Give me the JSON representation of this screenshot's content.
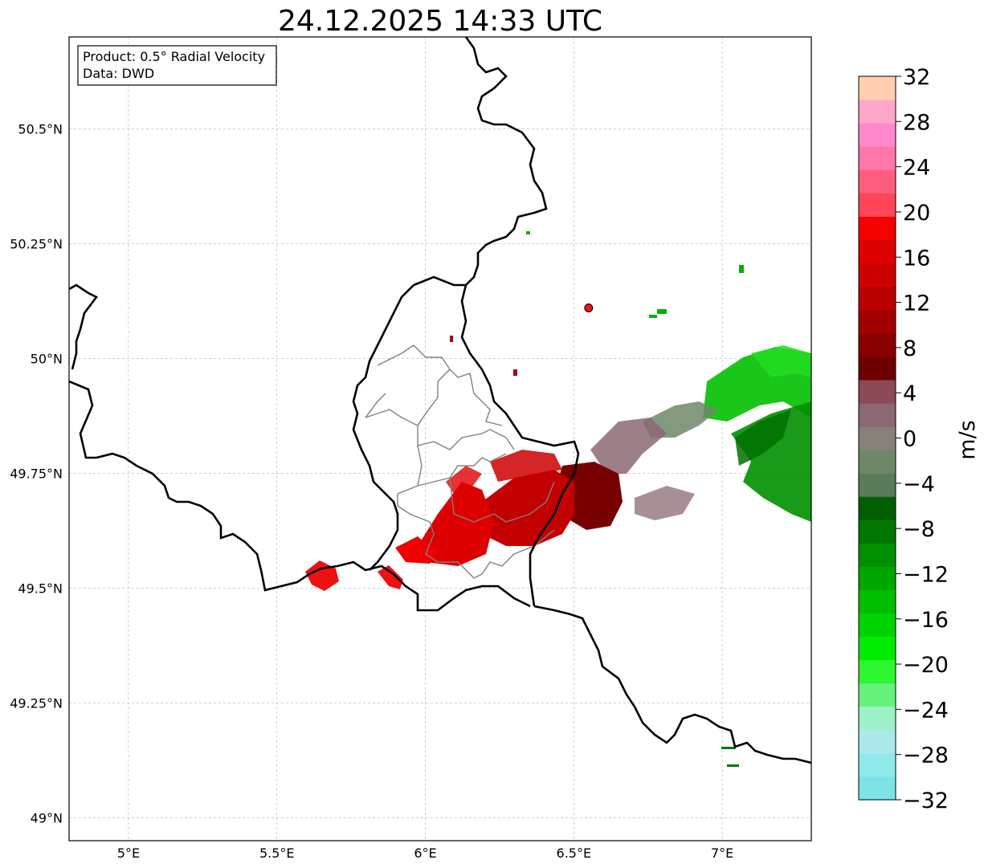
{
  "title": "24.12.2025 14:33 UTC",
  "info_box": {
    "product": "Product: 0.5° Radial Velocity",
    "data": "Data: DWD"
  },
  "map": {
    "lon_range": [
      4.8,
      7.3
    ],
    "lat_range": [
      48.95,
      50.7
    ],
    "x_ticks": [
      {
        "value": 5.0,
        "label": "5°E"
      },
      {
        "value": 5.5,
        "label": "5.5°E"
      },
      {
        "value": 6.0,
        "label": "6°E"
      },
      {
        "value": 6.5,
        "label": "6.5°E"
      },
      {
        "value": 7.0,
        "label": "7°E"
      }
    ],
    "y_ticks": [
      {
        "value": 50.5,
        "label": "50.5°N"
      },
      {
        "value": 50.25,
        "label": "50.25°N"
      },
      {
        "value": 50.0,
        "label": "50°N"
      },
      {
        "value": 49.75,
        "label": "49.75°N"
      },
      {
        "value": 49.5,
        "label": "49.5°N"
      },
      {
        "value": 49.25,
        "label": "49.25°N"
      },
      {
        "value": 49.0,
        "label": "49°N"
      }
    ],
    "radar_site": {
      "lon": 6.55,
      "lat": 50.11,
      "color": "#ee1111"
    }
  },
  "colorbar": {
    "label": "m/s",
    "min": -32,
    "max": 32,
    "tick_labels": [
      "32",
      "28",
      "24",
      "20",
      "16",
      "12",
      "8",
      "4",
      "0",
      "−4",
      "−8",
      "−12",
      "−16",
      "−20",
      "−24",
      "−28",
      "−32"
    ],
    "bands": [
      "#7ce3e6",
      "#8eeaea",
      "#ace9ea",
      "#9cf2c6",
      "#66f27c",
      "#2ef630",
      "#00ec00",
      "#00d400",
      "#00bd00",
      "#00a600",
      "#008f00",
      "#007800",
      "#005f00",
      "#5a7c5a",
      "#6d8869",
      "#878079",
      "#8b6872",
      "#8a4a56",
      "#6e0000",
      "#880000",
      "#a20000",
      "#b90000",
      "#cd0000",
      "#dd0000",
      "#f40000",
      "#ff4557",
      "#ff5d7f",
      "#ff77a6",
      "#ff88cd",
      "#ffa7c8",
      "#ffcfb0"
    ]
  }
}
